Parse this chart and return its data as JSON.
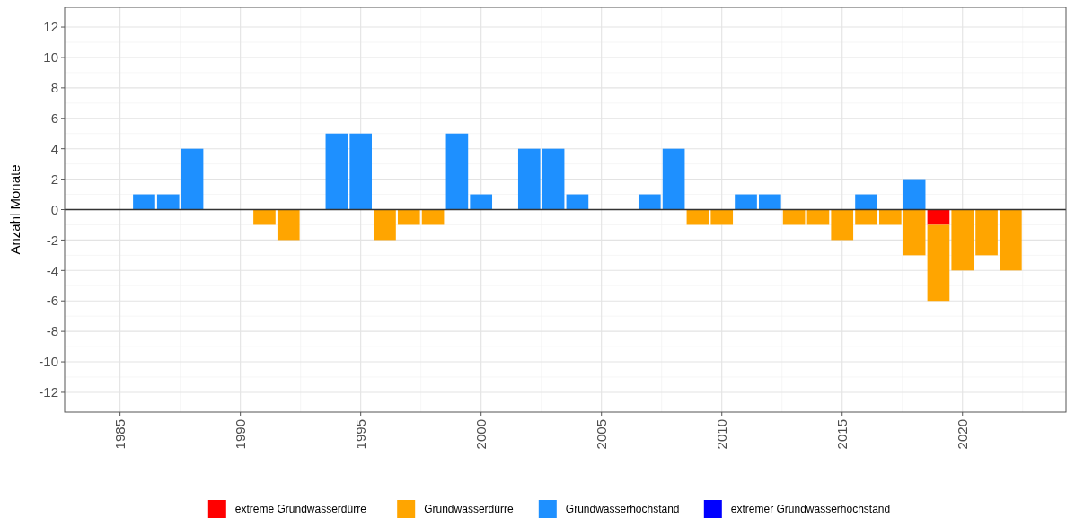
{
  "chart_data": {
    "type": "bar",
    "stacked": true,
    "ylabel": "Anzahl Monate",
    "x": [
      1986,
      1987,
      1988,
      1989,
      1990,
      1991,
      1992,
      1993,
      1994,
      1995,
      1996,
      1997,
      1998,
      1999,
      2000,
      2001,
      2002,
      2003,
      2004,
      2005,
      2006,
      2007,
      2008,
      2009,
      2010,
      2011,
      2012,
      2013,
      2014,
      2015,
      2016,
      2017,
      2018,
      2019,
      2020,
      2021,
      2022
    ],
    "series": [
      {
        "name": "extreme Grundwasserdürre",
        "color": "#ff0000",
        "values": [
          null,
          null,
          null,
          null,
          null,
          null,
          null,
          null,
          null,
          null,
          null,
          null,
          null,
          null,
          null,
          null,
          null,
          null,
          null,
          null,
          null,
          null,
          null,
          null,
          null,
          null,
          null,
          null,
          null,
          null,
          null,
          null,
          null,
          -1,
          null,
          null,
          null
        ]
      },
      {
        "name": "Grundwasserdürre",
        "color": "#ffa500",
        "values": [
          null,
          null,
          null,
          null,
          null,
          -1,
          -2,
          null,
          null,
          null,
          -2,
          -1,
          -1,
          null,
          null,
          null,
          null,
          null,
          null,
          null,
          null,
          null,
          null,
          -1,
          -1,
          null,
          null,
          -1,
          -1,
          -2,
          -1,
          -1,
          -3,
          -5,
          -4,
          -3,
          -4
        ]
      },
      {
        "name": "Grundwasserhochstand",
        "color": "#1e90ff",
        "values": [
          1,
          1,
          4,
          null,
          null,
          null,
          null,
          null,
          5,
          5,
          null,
          null,
          null,
          5,
          1,
          null,
          4,
          4,
          1,
          null,
          null,
          1,
          4,
          null,
          null,
          1,
          1,
          null,
          null,
          null,
          1,
          null,
          2,
          null,
          null,
          null,
          null
        ]
      },
      {
        "name": "extremer Grundwasserhochstand",
        "color": "#0000ff",
        "values": [
          null,
          null,
          null,
          null,
          null,
          null,
          null,
          null,
          null,
          null,
          null,
          null,
          null,
          null,
          null,
          null,
          null,
          null,
          null,
          null,
          null,
          null,
          null,
          null,
          null,
          null,
          null,
          null,
          null,
          null,
          null,
          null,
          null,
          null,
          null,
          null,
          null
        ]
      }
    ],
    "xlim": [
      1982.7,
      2024.3
    ],
    "xticks": [
      1985,
      1990,
      1995,
      2000,
      2005,
      2010,
      2015,
      2020
    ],
    "ylim": [
      -13.3,
      13.3
    ],
    "yticks": [
      -12,
      -10,
      -8,
      -6,
      -4,
      -2,
      0,
      2,
      4,
      6,
      8,
      10,
      12
    ],
    "grid": true,
    "legend": "bottom"
  }
}
